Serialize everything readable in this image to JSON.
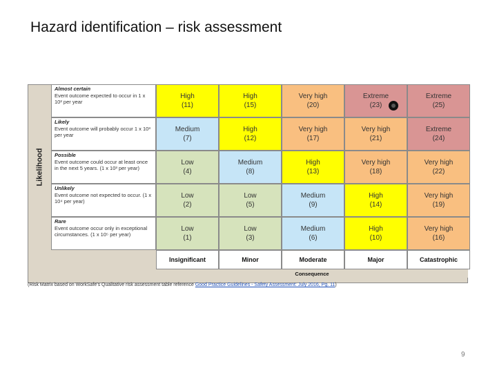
{
  "title": "Hazard identification – risk assessment",
  "y_axis_label": "Likelihood",
  "likelihood": [
    {
      "name": "Almost certain",
      "text": "Event outcome expected to occur in 1 x 10² per year"
    },
    {
      "name": "Likely",
      "text": "Event outcome will probably occur 1 x 10³ per year"
    },
    {
      "name": "Possible",
      "text": "Event outcome could occur at least once in the next 5 years. (1 x 10³ per year)"
    },
    {
      "name": "Unlikely",
      "text": "Event outcome not expected to occur. (1 x 10⁴ per year)"
    },
    {
      "name": "Rare",
      "text": "Event outcome occur only in exceptional circumstances. (1 x 10⁵ per year)"
    }
  ],
  "consequences": [
    "Insignificant",
    "Minor",
    "Moderate",
    "Major",
    "Catastrophic"
  ],
  "x_axis_label": "Consequence",
  "rows": [
    [
      {
        "level": "High",
        "score": "(11)",
        "color": "#ffff00"
      },
      {
        "level": "High",
        "score": "(15)",
        "color": "#ffff00"
      },
      {
        "level": "Very high",
        "score": "(20)",
        "color": "#f9bf80"
      },
      {
        "level": "Extreme",
        "score": "(23)",
        "color": "#d99594"
      },
      {
        "level": "Extreme",
        "score": "(25)",
        "color": "#d99594"
      }
    ],
    [
      {
        "level": "Medium",
        "score": "(7)",
        "color": "#c6e5f7"
      },
      {
        "level": "High",
        "score": "(12)",
        "color": "#ffff00"
      },
      {
        "level": "Very high",
        "score": "(17)",
        "color": "#f9bf80"
      },
      {
        "level": "Very high",
        "score": "(21)",
        "color": "#f9bf80"
      },
      {
        "level": "Extreme",
        "score": "(24)",
        "color": "#d99594"
      }
    ],
    [
      {
        "level": "Low",
        "score": "(4)",
        "color": "#d6e3bc"
      },
      {
        "level": "Medium",
        "score": "(8)",
        "color": "#c6e5f7"
      },
      {
        "level": "High",
        "score": "(13)",
        "color": "#ffff00"
      },
      {
        "level": "Very high",
        "score": "(18)",
        "color": "#f9bf80"
      },
      {
        "level": "Very high",
        "score": "(22)",
        "color": "#f9bf80"
      }
    ],
    [
      {
        "level": "Low",
        "score": "(2)",
        "color": "#d6e3bc"
      },
      {
        "level": "Low",
        "score": "(5)",
        "color": "#d6e3bc"
      },
      {
        "level": "Medium",
        "score": "(9)",
        "color": "#c6e5f7"
      },
      {
        "level": "High",
        "score": "(14)",
        "color": "#ffff00"
      },
      {
        "level": "Very high",
        "score": "(19)",
        "color": "#f9bf80"
      }
    ],
    [
      {
        "level": "Low",
        "score": "(1)",
        "color": "#d6e3bc"
      },
      {
        "level": "Low",
        "score": "(3)",
        "color": "#d6e3bc"
      },
      {
        "level": "Medium",
        "score": "(6)",
        "color": "#c6e5f7"
      },
      {
        "level": "High",
        "score": "(10)",
        "color": "#ffff00"
      },
      {
        "level": "Very high",
        "score": "(16)",
        "color": "#f9bf80"
      }
    ]
  ],
  "source_prefix": "(Risk Matrix based on WorkSafe's Qualitative risk assessment table reference ",
  "source_link": "Good Practice Guidelines - Safety Assessment: July 2016, Pg. 11",
  "source_suffix": ")",
  "page_number": "9"
}
